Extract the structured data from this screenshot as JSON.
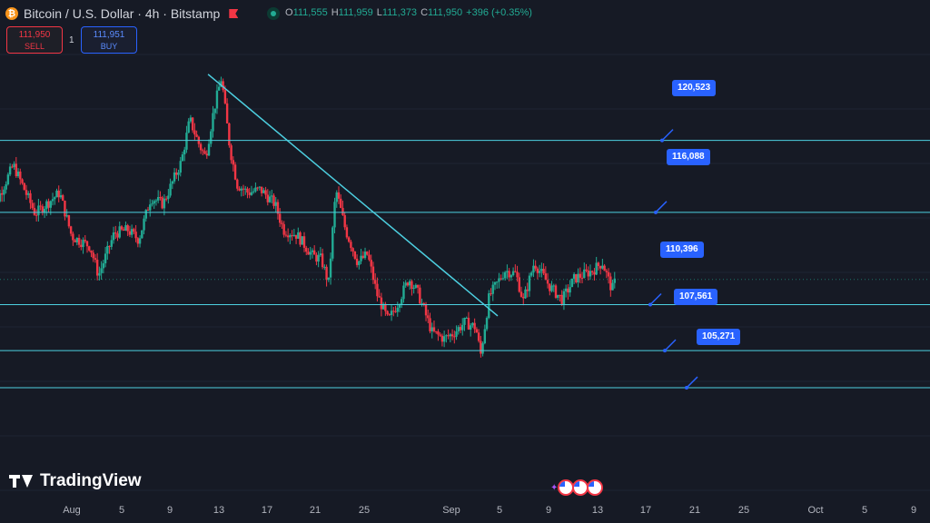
{
  "header": {
    "symbol": "Bitcoin / U.S. Dollar · 4h · Bitstamp",
    "icons": [
      "bitcoin-icon",
      "flag-icon",
      "market-open-icon"
    ],
    "ohlc": {
      "o_label": "O",
      "o": "111,555",
      "h_label": "H",
      "h": "111,959",
      "l_label": "L",
      "l": "111,373",
      "c_label": "C",
      "c": "111,950",
      "change": "+396 (+0.35%)"
    }
  },
  "trade": {
    "sell_price": "111,950",
    "sell_label": "SELL",
    "spread": "1",
    "buy_price": "111,951",
    "buy_label": "BUY"
  },
  "logo": "TradingView",
  "colors": {
    "up": "#22ab94",
    "down": "#f23645",
    "level_line": "#4dd0e1",
    "callout": "#2962ff",
    "background": "#161a25"
  },
  "chart_data": {
    "type": "candlestick",
    "timeframe": "4h",
    "x_ticks": [
      "Aug",
      "5",
      "9",
      "13",
      "17",
      "21",
      "25",
      "Sep",
      "5",
      "9",
      "13",
      "17",
      "21",
      "25",
      "Oct",
      "5",
      "9"
    ],
    "ylim": [
      98500,
      127500
    ],
    "last_price": 111950,
    "candles_summary": {
      "start": 115600,
      "late_july_high": 119000,
      "aug_3_low": 112200,
      "aug_13_high": 124400,
      "aug_22_low": 111700,
      "aug_23_high": 117500,
      "sep_1_low": 107300,
      "sep_9_high": 113200,
      "last": 111950
    },
    "support_resistance_levels": [
      {
        "label": "120,523",
        "value": 120523
      },
      {
        "label": "116,088",
        "value": 116088
      },
      {
        "label": "110,396",
        "value": 110396
      },
      {
        "label": "107,561",
        "value": 107561
      },
      {
        "label": "105,271",
        "value": 105271
      }
    ],
    "trendline": {
      "from": {
        "date": "Aug 13",
        "value": 124600
      },
      "to": {
        "date": "Sep 3",
        "value": 109700
      }
    }
  }
}
